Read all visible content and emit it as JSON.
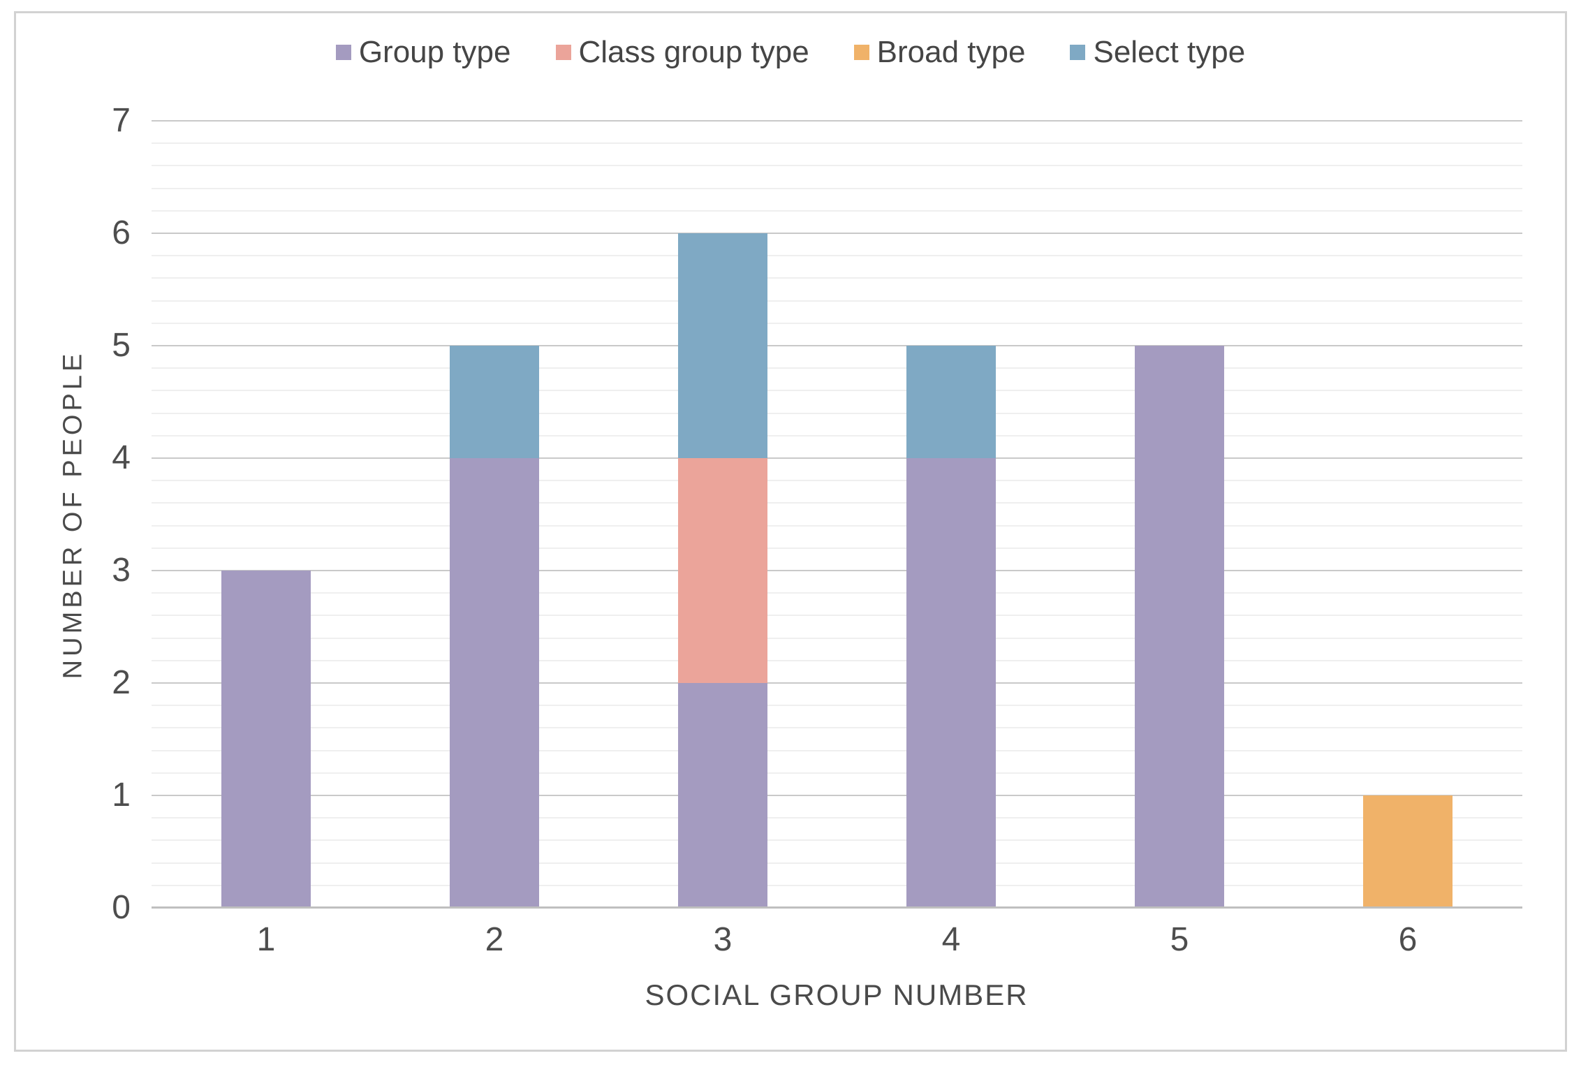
{
  "chart_data": {
    "type": "bar",
    "stacked": true,
    "categories": [
      "1",
      "2",
      "3",
      "4",
      "5",
      "6"
    ],
    "series": [
      {
        "name": "Group type",
        "color": "#a49bc0",
        "values": [
          3,
          4,
          2,
          4,
          5,
          0
        ]
      },
      {
        "name": "Class group type",
        "color": "#eba49a",
        "values": [
          0,
          0,
          2,
          0,
          0,
          0
        ]
      },
      {
        "name": "Broad type",
        "color": "#f0b269",
        "values": [
          0,
          0,
          0,
          0,
          0,
          1
        ]
      },
      {
        "name": "Select type",
        "color": "#7fa9c4",
        "values": [
          0,
          1,
          2,
          1,
          0,
          0
        ]
      }
    ],
    "xlabel": "SOCIAL GROUP NUMBER",
    "ylabel": "NUMBER OF PEOPLE",
    "ylim": [
      0,
      7
    ],
    "y_ticks": [
      0,
      1,
      2,
      3,
      4,
      5,
      6,
      7
    ],
    "y_minor_step": 0.2,
    "legend_position": "top",
    "grid": true,
    "colors": {
      "major_grid": "#c9c9c9",
      "minor_grid": "#efefef",
      "axis_line": "#bfbfbf",
      "text": "#4d4d4d"
    }
  }
}
